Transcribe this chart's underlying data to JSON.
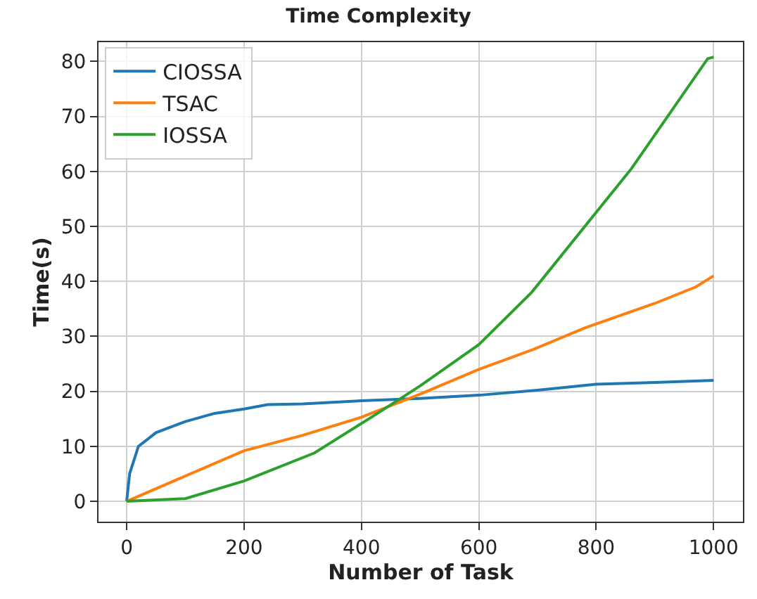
{
  "chart_data": {
    "type": "line",
    "title": "Time Complexity",
    "xlabel": "Number of Task",
    "ylabel": "Time(s)",
    "xlim": [
      -48,
      1050
    ],
    "ylim": [
      -3.7,
      83.5
    ],
    "xticks": [
      0,
      200,
      400,
      600,
      800,
      1000
    ],
    "yticks": [
      0,
      10,
      20,
      30,
      40,
      50,
      60,
      70,
      80
    ],
    "grid": true,
    "legend": "top left",
    "line_style": "solid",
    "marker": "none",
    "series": [
      {
        "name": "CIOSSA",
        "color": "#1f77b4",
        "x": [
          0,
          5,
          20,
          50,
          100,
          150,
          200,
          240,
          300,
          400,
          500,
          600,
          700,
          800,
          900,
          1000
        ],
        "values": [
          0,
          5,
          10,
          12.5,
          14.5,
          16,
          16.8,
          17.6,
          17.7,
          18.3,
          18.7,
          19.3,
          20.2,
          21.3,
          21.6,
          22
        ]
      },
      {
        "name": "TSAC",
        "color": "#ff7f0e",
        "x": [
          0,
          200,
          300,
          400,
          500,
          600,
          690,
          780,
          900,
          970,
          1000
        ],
        "values": [
          0,
          9.2,
          12,
          15.3,
          19.5,
          24,
          27.5,
          31.5,
          36,
          39,
          41
        ]
      },
      {
        "name": "IOSSA",
        "color": "#2ca02c",
        "x": [
          0,
          100,
          200,
          320,
          420,
          500,
          600,
          690,
          860,
          990,
          1000
        ],
        "values": [
          0,
          0.5,
          3.7,
          8.8,
          15.5,
          21,
          28.5,
          38,
          60.5,
          80.5,
          80.8
        ]
      }
    ]
  }
}
